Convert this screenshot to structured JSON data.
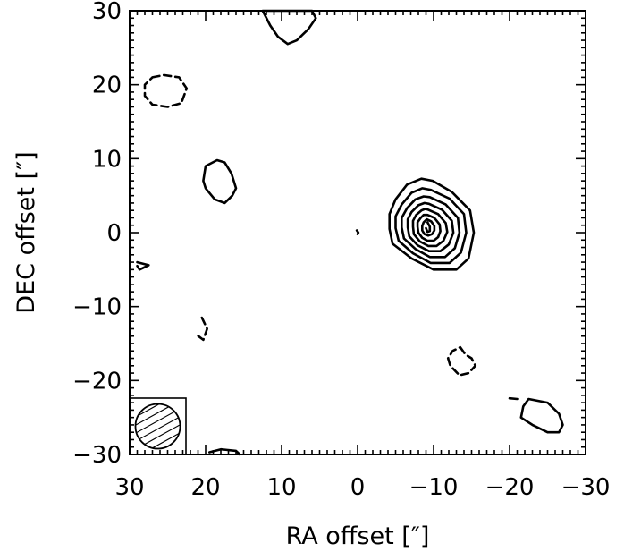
{
  "chart_data": {
    "type": "contour",
    "xlabel": "RA offset [″]",
    "ylabel": "DEC offset [″]",
    "xlim": [
      30,
      -30
    ],
    "ylim": [
      -30,
      30
    ],
    "x_ticks": [
      30,
      20,
      10,
      0,
      -10,
      -20,
      -30
    ],
    "x_tick_labels": [
      "30",
      "20",
      "10",
      "0",
      "−10",
      "−20",
      "−30"
    ],
    "y_ticks": [
      30,
      20,
      10,
      0,
      -10,
      -20,
      -30
    ],
    "y_tick_labels": [
      "30",
      "20",
      "10",
      "0",
      "−10",
      "−20",
      "−30"
    ],
    "grid": false,
    "beam_inset": "bottom-left",
    "source_peak": [
      -9.5,
      0.8
    ],
    "contours": [
      {
        "style": "solid",
        "points": [
          [
            -9.9,
            7.0
          ],
          [
            -12.4,
            5.5
          ],
          [
            -14.8,
            3.0
          ],
          [
            -15.3,
            0.0
          ],
          [
            -14.6,
            -3.5
          ],
          [
            -13.0,
            -5.0
          ],
          [
            -10.0,
            -5.0
          ],
          [
            -7.1,
            -3.5
          ],
          [
            -4.6,
            -1.5
          ],
          [
            -4.2,
            0.5
          ],
          [
            -4.2,
            2.5
          ],
          [
            -5.0,
            4.5
          ],
          [
            -6.5,
            6.5
          ],
          [
            -8.4,
            7.3
          ]
        ]
      },
      {
        "style": "solid",
        "points": [
          [
            -9.6,
            5.8
          ],
          [
            -12.1,
            4.6
          ],
          [
            -14.0,
            2.5
          ],
          [
            -14.3,
            0.0
          ],
          [
            -13.6,
            -2.7
          ],
          [
            -12.1,
            -4.1
          ],
          [
            -9.6,
            -4.1
          ],
          [
            -7.3,
            -2.8
          ],
          [
            -5.4,
            -1.1
          ],
          [
            -5.0,
            0.6
          ],
          [
            -5.0,
            2.2
          ],
          [
            -5.8,
            3.8
          ],
          [
            -7.1,
            5.4
          ],
          [
            -8.5,
            6.0
          ]
        ]
      },
      {
        "style": "solid",
        "points": [
          [
            -9.5,
            4.8
          ],
          [
            -11.6,
            3.8
          ],
          [
            -13.2,
            2.0
          ],
          [
            -13.4,
            0.0
          ],
          [
            -12.8,
            -2.1
          ],
          [
            -11.5,
            -3.3
          ],
          [
            -9.5,
            -3.3
          ],
          [
            -7.6,
            -2.2
          ],
          [
            -6.1,
            -0.8
          ],
          [
            -5.8,
            0.7
          ],
          [
            -5.8,
            2.0
          ],
          [
            -6.5,
            3.3
          ],
          [
            -7.6,
            4.5
          ],
          [
            -8.7,
            4.9
          ]
        ]
      },
      {
        "style": "solid",
        "points": [
          [
            -9.4,
            3.9
          ],
          [
            -11.1,
            3.1
          ],
          [
            -12.4,
            1.6
          ],
          [
            -12.6,
            0.0
          ],
          [
            -12.0,
            -1.6
          ],
          [
            -10.9,
            -2.5
          ],
          [
            -9.4,
            -2.5
          ],
          [
            -7.9,
            -1.7
          ],
          [
            -6.8,
            -0.5
          ],
          [
            -6.6,
            0.7
          ],
          [
            -6.6,
            1.8
          ],
          [
            -7.1,
            2.8
          ],
          [
            -8.0,
            3.7
          ],
          [
            -8.8,
            4.0
          ]
        ]
      },
      {
        "style": "solid",
        "points": [
          [
            -9.3,
            3.1
          ],
          [
            -10.6,
            2.5
          ],
          [
            -11.6,
            1.3
          ],
          [
            -11.8,
            0.1
          ],
          [
            -11.3,
            -1.1
          ],
          [
            -10.4,
            -1.8
          ],
          [
            -9.3,
            -1.8
          ],
          [
            -8.2,
            -1.2
          ],
          [
            -7.4,
            -0.2
          ],
          [
            -7.3,
            0.8
          ],
          [
            -7.3,
            1.6
          ],
          [
            -7.7,
            2.4
          ],
          [
            -8.4,
            3.0
          ],
          [
            -8.9,
            3.2
          ]
        ]
      },
      {
        "style": "solid",
        "points": [
          [
            -9.2,
            2.4
          ],
          [
            -10.1,
            2.0
          ],
          [
            -10.8,
            1.1
          ],
          [
            -10.9,
            0.2
          ],
          [
            -10.6,
            -0.6
          ],
          [
            -10.0,
            -1.1
          ],
          [
            -9.2,
            -1.1
          ],
          [
            -8.5,
            -0.7
          ],
          [
            -8.0,
            0.0
          ],
          [
            -7.9,
            0.8
          ],
          [
            -7.9,
            1.4
          ],
          [
            -8.3,
            2.0
          ],
          [
            -8.7,
            2.4
          ]
        ]
      },
      {
        "style": "solid",
        "points": [
          [
            -9.1,
            1.8
          ],
          [
            -9.7,
            1.5
          ],
          [
            -10.1,
            0.9
          ],
          [
            -10.1,
            0.3
          ],
          [
            -9.8,
            -0.2
          ],
          [
            -9.3,
            -0.4
          ],
          [
            -8.8,
            -0.2
          ],
          [
            -8.5,
            0.3
          ],
          [
            -8.5,
            0.9
          ],
          [
            -8.7,
            1.4
          ]
        ]
      },
      {
        "style": "solid",
        "points": [
          [
            -9.2,
            1.4
          ],
          [
            -9.5,
            0.8
          ],
          [
            -9.5,
            0.2
          ],
          [
            -9.2,
            0.1
          ],
          [
            -9.0,
            0.6
          ]
        ]
      },
      {
        "style": "solid",
        "points": [
          [
            12.5,
            30.0
          ],
          [
            11.5,
            28.0
          ],
          [
            10.5,
            26.5
          ],
          [
            9.2,
            25.5
          ],
          [
            8.0,
            26.0
          ],
          [
            6.5,
            27.5
          ],
          [
            5.5,
            29.0
          ],
          [
            6.0,
            30.0
          ]
        ]
      },
      {
        "style": "solid",
        "points": [
          [
            18.5,
            9.8
          ],
          [
            20.0,
            9.0
          ],
          [
            20.3,
            7.0
          ],
          [
            20.0,
            6.0
          ],
          [
            18.8,
            4.5
          ],
          [
            17.5,
            4.0
          ],
          [
            16.5,
            5.0
          ],
          [
            16.0,
            6.0
          ],
          [
            16.6,
            8.0
          ],
          [
            17.5,
            9.5
          ]
        ]
      },
      {
        "style": "solid",
        "points": [
          [
            -22.5,
            -22.5
          ],
          [
            -25.0,
            -23.0
          ],
          [
            -26.5,
            -24.5
          ],
          [
            -27.0,
            -26.0
          ],
          [
            -26.5,
            -27.0
          ],
          [
            -25.0,
            -27.0
          ],
          [
            -23.0,
            -26.0
          ],
          [
            -21.5,
            -25.0
          ],
          [
            -21.8,
            -23.5
          ]
        ]
      },
      {
        "style": "solid",
        "points": [
          [
            19.5,
            -29.7
          ],
          [
            18.0,
            -29.3
          ],
          [
            16.0,
            -29.5
          ],
          [
            15.5,
            -30.0
          ]
        ]
      },
      {
        "style": "solid",
        "points": [
          [
            29.0,
            -4.0
          ],
          [
            27.5,
            -4.4
          ],
          [
            28.7,
            -5.0
          ],
          [
            29.0,
            -4.5
          ]
        ]
      },
      {
        "style": "solid",
        "points": [
          [
            0.1,
            0.3
          ],
          [
            -0.1,
            0.0
          ],
          [
            0.0,
            -0.2
          ]
        ]
      },
      {
        "style": "solid",
        "points": [
          [
            -20.0,
            -22.4
          ],
          [
            -21.0,
            -22.5
          ]
        ]
      },
      {
        "style": "dashed",
        "points": [
          [
            27.0,
            21.0
          ],
          [
            25.5,
            21.3
          ],
          [
            23.5,
            21.0
          ],
          [
            22.5,
            19.5
          ],
          [
            23.2,
            17.5
          ],
          [
            25.0,
            17.0
          ],
          [
            27.0,
            17.3
          ],
          [
            28.0,
            18.5
          ],
          [
            28.0,
            20.0
          ]
        ]
      },
      {
        "style": "dashed",
        "points": [
          [
            20.5,
            -11.5
          ],
          [
            19.8,
            -13.0
          ],
          [
            20.3,
            -14.5
          ],
          [
            21.2,
            -13.8
          ]
        ]
      },
      {
        "style": "dashed",
        "points": [
          [
            -13.5,
            -15.5
          ],
          [
            -14.2,
            -16.5
          ],
          [
            -15.0,
            -17.0
          ],
          [
            -15.5,
            -18.0
          ],
          [
            -14.6,
            -19.0
          ],
          [
            -13.4,
            -19.3
          ],
          [
            -12.2,
            -18.0
          ],
          [
            -11.9,
            -17.0
          ],
          [
            -12.5,
            -16.0
          ]
        ]
      }
    ]
  }
}
